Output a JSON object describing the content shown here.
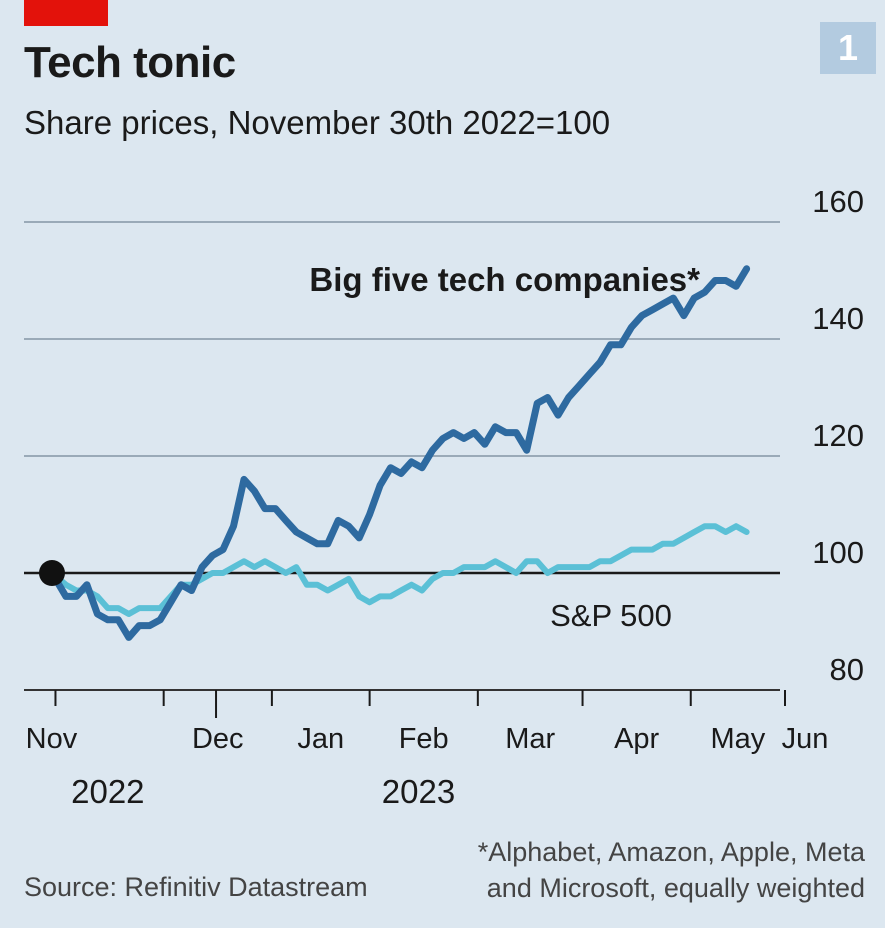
{
  "header": {
    "title": "Tech tonic",
    "subtitle": "Share prices, November 30th 2022=100",
    "badge": "1"
  },
  "footer": {
    "source": "Source: Refinitiv Datastream",
    "note_line1": "*Alphabet, Amazon, Apple, Meta",
    "note_line2": "and Microsoft, equally weighted"
  },
  "colors": {
    "background": "#dce7f0",
    "big_five": "#2e6aa0",
    "sp500": "#5bc0d6",
    "brand_red": "#e3120b",
    "badge": "#b3cbe0"
  },
  "chart_data": {
    "type": "line",
    "title": "Tech tonic",
    "subtitle": "Share prices, November 30th 2022=100",
    "x_type": "date",
    "xlim": [
      "2022-11-28",
      "2023-06-28"
    ],
    "ylim": [
      80,
      160
    ],
    "y_ticks": [
      80,
      100,
      120,
      140,
      160
    ],
    "x_ticks": [
      {
        "date": "2022-12-01",
        "label": "Nov"
      },
      {
        "date": "2023-01-01",
        "label": "Dec"
      },
      {
        "date": "2023-02-01",
        "label": "Jan"
      },
      {
        "date": "2023-03-01",
        "label": "Feb"
      },
      {
        "date": "2023-04-01",
        "label": "Mar"
      },
      {
        "date": "2023-05-01",
        "label": "Apr"
      },
      {
        "date": "2023-06-01",
        "label": "May"
      },
      {
        "date": "2023-06-28",
        "label": "Jun"
      }
    ],
    "year_labels": [
      {
        "label": "2022",
        "date": "2022-12-16"
      },
      {
        "label": "2023",
        "date": "2023-03-15"
      }
    ],
    "grid": true,
    "baseline": 100,
    "start_marker": {
      "date": "2022-11-30",
      "value": 100
    },
    "series": [
      {
        "name": "Big five tech companies*",
        "color": "#2e6aa0",
        "points": [
          [
            "2022-11-30",
            100
          ],
          [
            "2022-12-04",
            96
          ],
          [
            "2022-12-07",
            96
          ],
          [
            "2022-12-10",
            98
          ],
          [
            "2022-12-13",
            93
          ],
          [
            "2022-12-16",
            92
          ],
          [
            "2022-12-19",
            92
          ],
          [
            "2022-12-22",
            89
          ],
          [
            "2022-12-25",
            91
          ],
          [
            "2022-12-28",
            91
          ],
          [
            "2022-12-31",
            92
          ],
          [
            "2023-01-03",
            95
          ],
          [
            "2023-01-06",
            98
          ],
          [
            "2023-01-09",
            97
          ],
          [
            "2023-01-12",
            101
          ],
          [
            "2023-01-15",
            103
          ],
          [
            "2023-01-18",
            104
          ],
          [
            "2023-01-21",
            108
          ],
          [
            "2023-01-24",
            116
          ],
          [
            "2023-01-27",
            114
          ],
          [
            "2023-01-30",
            111
          ],
          [
            "2023-02-02",
            111
          ],
          [
            "2023-02-05",
            109
          ],
          [
            "2023-02-08",
            107
          ],
          [
            "2023-02-11",
            106
          ],
          [
            "2023-02-14",
            105
          ],
          [
            "2023-02-17",
            105
          ],
          [
            "2023-02-20",
            109
          ],
          [
            "2023-02-23",
            108
          ],
          [
            "2023-02-26",
            106
          ],
          [
            "2023-03-01",
            110
          ],
          [
            "2023-03-04",
            115
          ],
          [
            "2023-03-07",
            118
          ],
          [
            "2023-03-10",
            117
          ],
          [
            "2023-03-13",
            119
          ],
          [
            "2023-03-16",
            118
          ],
          [
            "2023-03-19",
            121
          ],
          [
            "2023-03-22",
            123
          ],
          [
            "2023-03-25",
            124
          ],
          [
            "2023-03-28",
            123
          ],
          [
            "2023-03-31",
            124
          ],
          [
            "2023-04-03",
            122
          ],
          [
            "2023-04-06",
            125
          ],
          [
            "2023-04-09",
            124
          ],
          [
            "2023-04-12",
            124
          ],
          [
            "2023-04-15",
            121
          ],
          [
            "2023-04-18",
            129
          ],
          [
            "2023-04-21",
            130
          ],
          [
            "2023-04-24",
            127
          ],
          [
            "2023-04-27",
            130
          ],
          [
            "2023-04-30",
            132
          ],
          [
            "2023-05-03",
            134
          ],
          [
            "2023-05-06",
            136
          ],
          [
            "2023-05-09",
            139
          ],
          [
            "2023-05-12",
            139
          ],
          [
            "2023-05-15",
            142
          ],
          [
            "2023-05-18",
            144
          ],
          [
            "2023-05-21",
            145
          ],
          [
            "2023-05-24",
            146
          ],
          [
            "2023-05-27",
            147
          ],
          [
            "2023-05-30",
            144
          ],
          [
            "2023-06-02",
            147
          ],
          [
            "2023-06-05",
            148
          ],
          [
            "2023-06-08",
            150
          ],
          [
            "2023-06-11",
            150
          ],
          [
            "2023-06-14",
            149
          ],
          [
            "2023-06-17",
            152
          ]
        ]
      },
      {
        "name": "S&P 500",
        "color": "#5bc0d6",
        "points": [
          [
            "2022-11-30",
            100
          ],
          [
            "2022-12-04",
            98
          ],
          [
            "2022-12-07",
            97
          ],
          [
            "2022-12-10",
            97
          ],
          [
            "2022-12-13",
            96
          ],
          [
            "2022-12-16",
            94
          ],
          [
            "2022-12-19",
            94
          ],
          [
            "2022-12-22",
            93
          ],
          [
            "2022-12-25",
            94
          ],
          [
            "2022-12-28",
            94
          ],
          [
            "2022-12-31",
            94
          ],
          [
            "2023-01-03",
            96
          ],
          [
            "2023-01-06",
            98
          ],
          [
            "2023-01-09",
            98
          ],
          [
            "2023-01-12",
            99
          ],
          [
            "2023-01-15",
            100
          ],
          [
            "2023-01-18",
            100
          ],
          [
            "2023-01-21",
            101
          ],
          [
            "2023-01-24",
            102
          ],
          [
            "2023-01-27",
            101
          ],
          [
            "2023-01-30",
            102
          ],
          [
            "2023-02-02",
            101
          ],
          [
            "2023-02-05",
            100
          ],
          [
            "2023-02-08",
            101
          ],
          [
            "2023-02-11",
            98
          ],
          [
            "2023-02-14",
            98
          ],
          [
            "2023-02-17",
            97
          ],
          [
            "2023-02-20",
            98
          ],
          [
            "2023-02-23",
            99
          ],
          [
            "2023-02-26",
            96
          ],
          [
            "2023-03-01",
            95
          ],
          [
            "2023-03-04",
            96
          ],
          [
            "2023-03-07",
            96
          ],
          [
            "2023-03-10",
            97
          ],
          [
            "2023-03-13",
            98
          ],
          [
            "2023-03-16",
            97
          ],
          [
            "2023-03-19",
            99
          ],
          [
            "2023-03-22",
            100
          ],
          [
            "2023-03-25",
            100
          ],
          [
            "2023-03-28",
            101
          ],
          [
            "2023-03-31",
            101
          ],
          [
            "2023-04-03",
            101
          ],
          [
            "2023-04-06",
            102
          ],
          [
            "2023-04-09",
            101
          ],
          [
            "2023-04-12",
            100
          ],
          [
            "2023-04-15",
            102
          ],
          [
            "2023-04-18",
            102
          ],
          [
            "2023-04-21",
            100
          ],
          [
            "2023-04-24",
            101
          ],
          [
            "2023-04-27",
            101
          ],
          [
            "2023-04-30",
            101
          ],
          [
            "2023-05-03",
            101
          ],
          [
            "2023-05-06",
            102
          ],
          [
            "2023-05-09",
            102
          ],
          [
            "2023-05-12",
            103
          ],
          [
            "2023-05-15",
            104
          ],
          [
            "2023-05-18",
            104
          ],
          [
            "2023-05-21",
            104
          ],
          [
            "2023-05-24",
            105
          ],
          [
            "2023-05-27",
            105
          ],
          [
            "2023-05-30",
            106
          ],
          [
            "2023-06-02",
            107
          ],
          [
            "2023-06-05",
            108
          ],
          [
            "2023-06-08",
            108
          ],
          [
            "2023-06-11",
            107
          ],
          [
            "2023-06-14",
            108
          ],
          [
            "2023-06-17",
            107
          ]
        ]
      }
    ]
  }
}
